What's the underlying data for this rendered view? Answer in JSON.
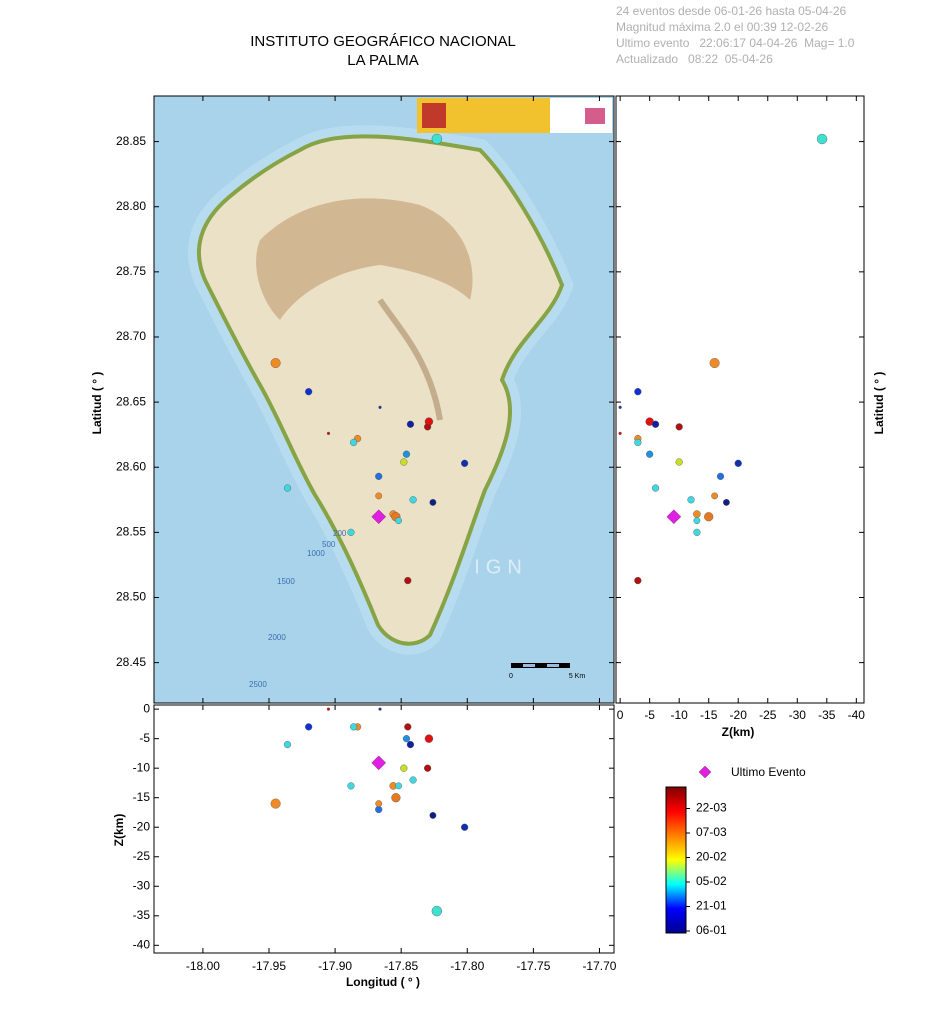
{
  "chart_data": {
    "type": "scatter",
    "title": [
      "INSTITUTO GEOGRÁFICO NACIONAL",
      "LA PALMA"
    ],
    "info": [
      "24 eventos desde 06-01-26 hasta 05-04-26",
      "Magnitud máxima 2.0 el 00:39 12-02-26",
      "Ultimo evento   22:06:17 04-04-26  Mag= 1.0",
      "Actualizado   08:22  05-04-26"
    ],
    "xlabel": "Longitud ( ° )",
    "ylabel": "Latitud ( ° )",
    "zlabel": "Z(km)",
    "xlim": [
      -18.037,
      -17.689
    ],
    "ylim": [
      28.419,
      28.885
    ],
    "zlim": [
      0.7,
      -41.3
    ],
    "xticks": [
      {
        "value": -18.0,
        "label": "-18.00"
      },
      -17.95,
      {
        "value": -17.9,
        "label": "-17.90"
      },
      -17.85,
      {
        "value": -17.8,
        "label": "-17.80"
      },
      -17.75,
      {
        "value": -17.7,
        "label": "-17.70"
      }
    ],
    "yticks": [
      28.45,
      {
        "value": 28.5,
        "label": "28.50"
      },
      28.55,
      {
        "value": 28.6,
        "label": "28.60"
      },
      28.65,
      {
        "value": 28.7,
        "label": "28.70"
      },
      28.75,
      {
        "value": 28.8,
        "label": "28.80"
      },
      28.85
    ],
    "zticks": [
      0,
      -5,
      -10,
      -15,
      -20,
      -25,
      -30,
      -35,
      -40
    ],
    "series": [
      {
        "x": [
          -17.823,
          -17.945,
          -17.92,
          -17.866,
          -17.905,
          -17.829,
          -17.83,
          -17.843,
          -17.883,
          -17.886,
          -17.846,
          -17.848,
          -17.802,
          -17.867,
          -17.936,
          -17.867,
          -17.841,
          -17.826,
          -17.856,
          -17.854,
          -17.852,
          -17.888,
          -17.845
        ],
        "y": [
          28.852,
          28.68,
          28.658,
          28.646,
          28.626,
          28.635,
          28.631,
          28.633,
          28.622,
          28.619,
          28.61,
          28.604,
          28.603,
          28.593,
          28.584,
          28.578,
          28.575,
          28.573,
          28.564,
          28.562,
          28.559,
          28.55,
          28.513
        ],
        "z": [
          -34.2,
          -16,
          -3,
          0,
          0,
          -5,
          -10,
          -6,
          -3,
          -3,
          -5,
          -10,
          -20,
          -17,
          -6,
          -16,
          -12,
          -18,
          -13,
          -15,
          -13,
          -13,
          -3
        ],
        "magnitudes": [
          2.0,
          1.9,
          1.2,
          0.2,
          0.2,
          1.5,
          1.2,
          1.2,
          1.2,
          1.2,
          1.2,
          1.2,
          1.2,
          1.2,
          1.2,
          1.1,
          1.2,
          1.1,
          1.3,
          1.7,
          1.1,
          1.2,
          1.2
        ],
        "colors": [
          "#3fe0d0",
          "#f08a24",
          "#1030d0",
          "#2030a0",
          "#d01010",
          "#e01010",
          "#b01010",
          "#1020a0",
          "#f08a24",
          "#40d8e0",
          "#2090e0",
          "#c8e020",
          "#1030b0",
          "#2070e0",
          "#40d8e0",
          "#f08a24",
          "#40d8e0",
          "#102080",
          "#f08a24",
          "#e87820",
          "#40d8e0",
          "#40d8e0",
          "#b01010"
        ]
      },
      {
        "name": "Ultimo Evento",
        "color": "#e020e0",
        "marker": "diamond",
        "x": [
          -17.867
        ],
        "y": [
          28.562
        ],
        "z": [
          -9.1
        ]
      }
    ],
    "colorbar": {
      "colors": [
        "#00008f",
        "#0000ff",
        "#00ffff",
        "#ffff00",
        "#ff8000",
        "#ff0000",
        "#800000"
      ],
      "ticks": [
        "06-01",
        "21-01",
        "05-02",
        "20-02",
        "07-03",
        "22-03"
      ]
    },
    "map_labels": {
      "contours": [
        "200",
        "500",
        "1000",
        "1500",
        "2000",
        "2500"
      ],
      "scale": [
        "0",
        "5 Km"
      ],
      "watermark": "IGN"
    }
  }
}
